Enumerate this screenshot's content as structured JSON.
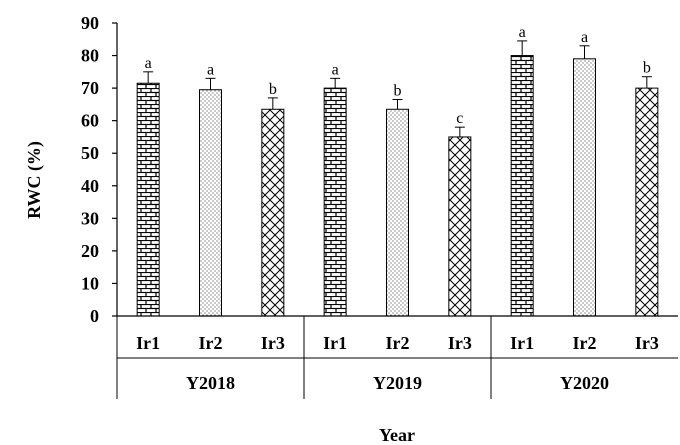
{
  "chart_data": {
    "type": "bar",
    "ylabel": "RWC (%)",
    "xlabel": "Year",
    "ylim": [
      0,
      90
    ],
    "yticks": [
      0,
      10,
      20,
      30,
      40,
      50,
      60,
      70,
      80,
      90
    ],
    "grid": false,
    "legend": "none",
    "groups": [
      {
        "name": "Y2018",
        "bars": [
          {
            "category": "Ir1",
            "value": 71.5,
            "error": 3.5,
            "sig": "a",
            "pattern": "brick"
          },
          {
            "category": "Ir2",
            "value": 69.5,
            "error": 3.5,
            "sig": "a",
            "pattern": "dots"
          },
          {
            "category": "Ir3",
            "value": 63.5,
            "error": 3.5,
            "sig": "b",
            "pattern": "crosshatch"
          }
        ]
      },
      {
        "name": "Y2019",
        "bars": [
          {
            "category": "Ir1",
            "value": 70,
            "error": 3,
            "sig": "a",
            "pattern": "brick"
          },
          {
            "category": "Ir2",
            "value": 63.5,
            "error": 3,
            "sig": "b",
            "pattern": "dots"
          },
          {
            "category": "Ir3",
            "value": 55,
            "error": 3,
            "sig": "c",
            "pattern": "crosshatch"
          }
        ]
      },
      {
        "name": "Y2020",
        "bars": [
          {
            "category": "Ir1",
            "value": 80,
            "error": 4.5,
            "sig": "a",
            "pattern": "brick"
          },
          {
            "category": "Ir2",
            "value": 79,
            "error": 4,
            "sig": "a",
            "pattern": "dots"
          },
          {
            "category": "Ir3",
            "value": 70,
            "error": 3.5,
            "sig": "b",
            "pattern": "crosshatch"
          }
        ]
      }
    ],
    "colors": {
      "bar_fill": "#ffffff",
      "stroke": "#000000",
      "pattern": "#000000",
      "axis": "#000000"
    }
  }
}
